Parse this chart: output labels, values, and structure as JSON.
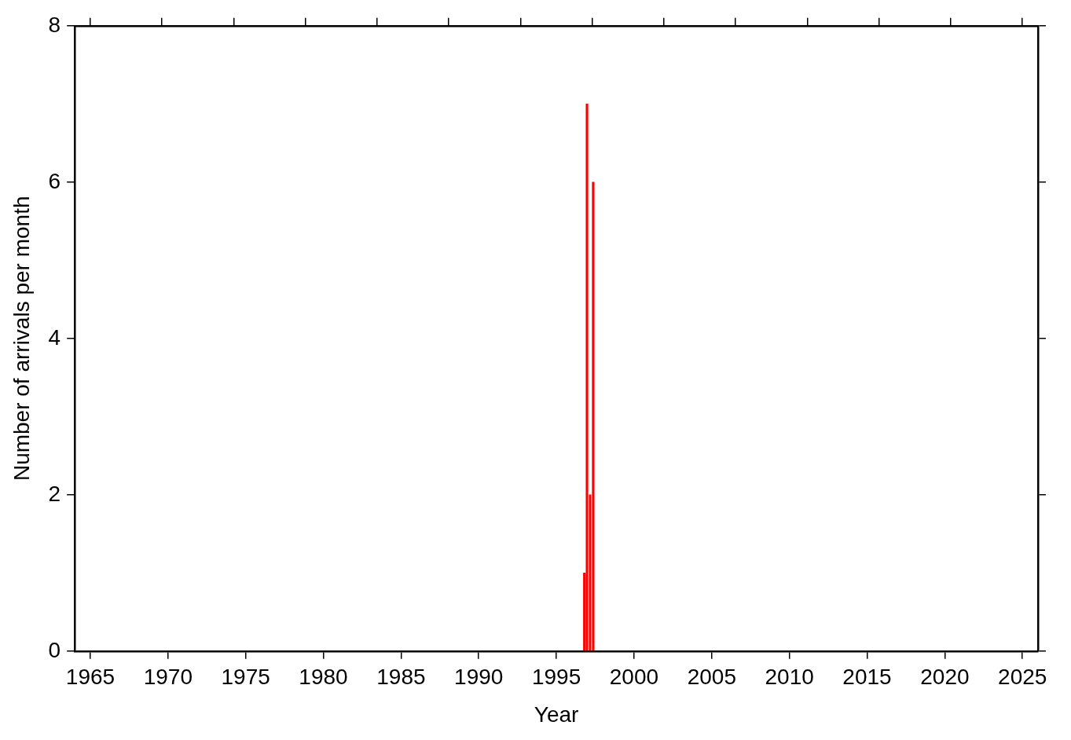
{
  "chart_data": {
    "type": "bar",
    "xlabel": "Year",
    "ylabel": "Number of arrivals per month",
    "x": [
      1996.8,
      1996.97,
      1997.17,
      1997.37
    ],
    "values": [
      1,
      7,
      2,
      6
    ],
    "color": "#ff0000",
    "xlim": [
      1964,
      2026
    ],
    "xticks": [
      1965,
      1970,
      1975,
      1980,
      1985,
      1990,
      1995,
      2000,
      2005,
      2010,
      2015,
      2020,
      2025
    ],
    "ylim": [
      0,
      8
    ],
    "yticks": [
      0,
      2,
      4,
      6,
      8
    ],
    "grid": false,
    "legend": false
  }
}
